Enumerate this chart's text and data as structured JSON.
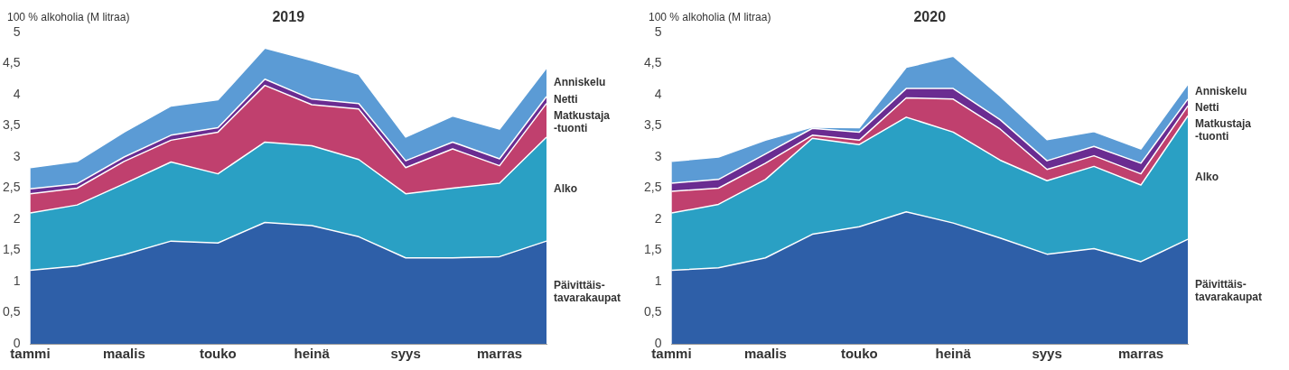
{
  "chart_data": [
    {
      "type": "area",
      "title": "2019",
      "ylabel": "100 % alkoholia (M litraa)",
      "stacked": true,
      "legend": "right",
      "grid": false,
      "categories": [
        "tammi",
        null,
        "maalis",
        null,
        "touko",
        null,
        "heinä",
        null,
        "syys",
        null,
        "marras",
        null
      ],
      "ylim": [
        0,
        5
      ],
      "yticks": [
        0,
        {
          "value": 0.5,
          "label": "0,5"
        },
        1,
        {
          "value": 1.5,
          "label": "1,5"
        },
        2,
        {
          "value": 2.5,
          "label": "2,5"
        },
        3,
        {
          "value": 3.5,
          "label": "3,5"
        },
        4,
        {
          "value": 4.5,
          "label": "4,5"
        },
        5
      ],
      "series": [
        {
          "name": "Päivittäis-\ntavarakaupat",
          "color": "#2e5fa8",
          "values": [
            1.18,
            1.25,
            1.43,
            1.65,
            1.62,
            1.95,
            1.9,
            1.72,
            1.38,
            1.38,
            1.4,
            1.65
          ]
        },
        {
          "name": "Alko",
          "color": "#2aa0c4",
          "values": [
            0.92,
            0.98,
            1.14,
            1.27,
            1.11,
            1.29,
            1.28,
            1.24,
            1.03,
            1.12,
            1.18,
            1.67
          ]
        },
        {
          "name": "Matkustaja\n-tuonti",
          "color": "#c0406e",
          "values": [
            0.31,
            0.27,
            0.36,
            0.35,
            0.67,
            0.91,
            0.66,
            0.81,
            0.42,
            0.63,
            0.28,
            0.54
          ]
        },
        {
          "name": "Netti",
          "color": "#6a2c91",
          "values": [
            0.08,
            0.07,
            0.07,
            0.08,
            0.07,
            0.1,
            0.09,
            0.09,
            0.11,
            0.11,
            0.11,
            0.11
          ]
        },
        {
          "name": "Anniskelu",
          "color": "#5b9bd5",
          "values": [
            0.34,
            0.36,
            0.4,
            0.47,
            0.45,
            0.5,
            0.62,
            0.47,
            0.38,
            0.42,
            0.48,
            0.46
          ]
        }
      ]
    },
    {
      "type": "area",
      "title": "2020",
      "ylabel": "100 % alkoholia (M litraa)",
      "stacked": true,
      "legend": "right",
      "grid": false,
      "categories": [
        "tammi",
        null,
        "maalis",
        null,
        "touko",
        null,
        "heinä",
        null,
        "syys",
        null,
        "marras",
        null
      ],
      "ylim": [
        0,
        5
      ],
      "yticks": [
        0,
        {
          "value": 0.5,
          "label": "0,5"
        },
        1,
        {
          "value": 1.5,
          "label": "1,5"
        },
        2,
        {
          "value": 2.5,
          "label": "2,5"
        },
        3,
        {
          "value": 3.5,
          "label": "3,5"
        },
        4,
        {
          "value": 4.5,
          "label": "4,5"
        },
        5
      ],
      "series": [
        {
          "name": "Päivittäis-\ntavarakaupat",
          "color": "#2e5fa8",
          "values": [
            1.18,
            1.22,
            1.38,
            1.76,
            1.88,
            2.12,
            1.94,
            1.7,
            1.44,
            1.53,
            1.32,
            1.68
          ]
        },
        {
          "name": "Alko",
          "color": "#2aa0c4",
          "values": [
            0.92,
            1.02,
            1.26,
            1.54,
            1.32,
            1.52,
            1.46,
            1.25,
            1.18,
            1.32,
            1.23,
            1.98
          ]
        },
        {
          "name": "Matkustaja\n-tuonti",
          "color": "#c0406e",
          "values": [
            0.35,
            0.26,
            0.26,
            0.05,
            0.07,
            0.31,
            0.53,
            0.5,
            0.18,
            0.17,
            0.18,
            0.16
          ]
        },
        {
          "name": "Netti",
          "color": "#6a2c91",
          "values": [
            0.13,
            0.14,
            0.15,
            0.11,
            0.13,
            0.15,
            0.17,
            0.15,
            0.14,
            0.15,
            0.17,
            0.11
          ]
        },
        {
          "name": "Anniskelu",
          "color": "#5b9bd5",
          "values": [
            0.35,
            0.36,
            0.22,
            0.02,
            0.07,
            0.34,
            0.52,
            0.38,
            0.34,
            0.24,
            0.23,
            0.24
          ]
        }
      ]
    }
  ]
}
